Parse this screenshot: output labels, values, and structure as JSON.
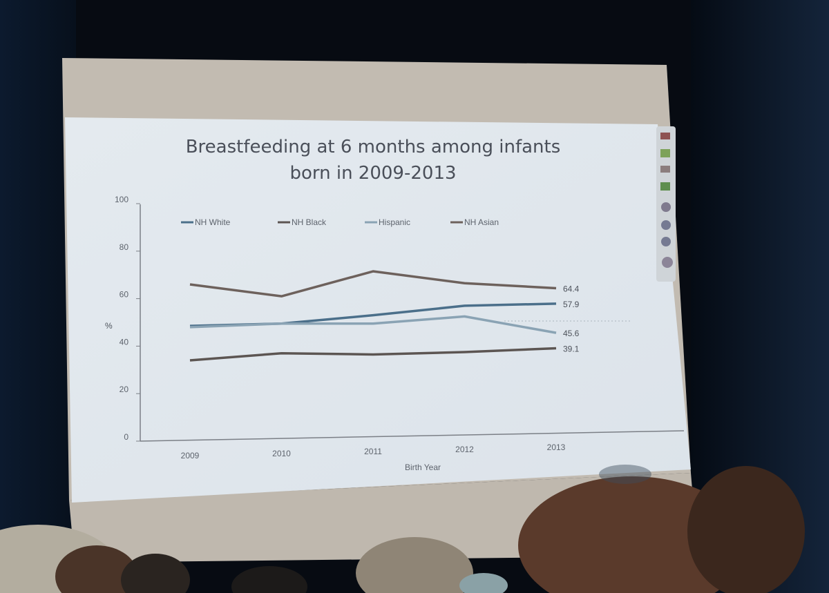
{
  "slide": {
    "title_line1": "Breastfeeding at 6 months among infants",
    "title_line2": "born in 2009-2013"
  },
  "chart_data": {
    "type": "line",
    "title": "Breastfeeding at 6 months among infants born in 2009-2013",
    "xlabel": "Birth Year",
    "ylabel": "%",
    "categories": [
      "2009",
      "2010",
      "2011",
      "2012",
      "2013"
    ],
    "yticks": [
      "0",
      "20",
      "40",
      "60",
      "80",
      "100"
    ],
    "ylim": [
      0,
      100
    ],
    "grid": false,
    "legend_position": "top",
    "series": [
      {
        "name": "NH White",
        "values": [
          48.5,
          49.5,
          53,
          57,
          57.9
        ],
        "color": "#4b6f8a",
        "end_label": "57.9"
      },
      {
        "name": "NH Black",
        "values": [
          34,
          37,
          36.5,
          37.5,
          39.1
        ],
        "color": "#5c5552",
        "end_label": "39.1"
      },
      {
        "name": "Hispanic",
        "values": [
          48,
          49.5,
          49.5,
          52.5,
          45.6
        ],
        "color": "#8aa3b4",
        "end_label": "45.6"
      },
      {
        "name": "NH Asian",
        "values": [
          66,
          61,
          71.5,
          66.5,
          64.4
        ],
        "color": "#6d615c",
        "end_label": "64.4"
      }
    ]
  }
}
